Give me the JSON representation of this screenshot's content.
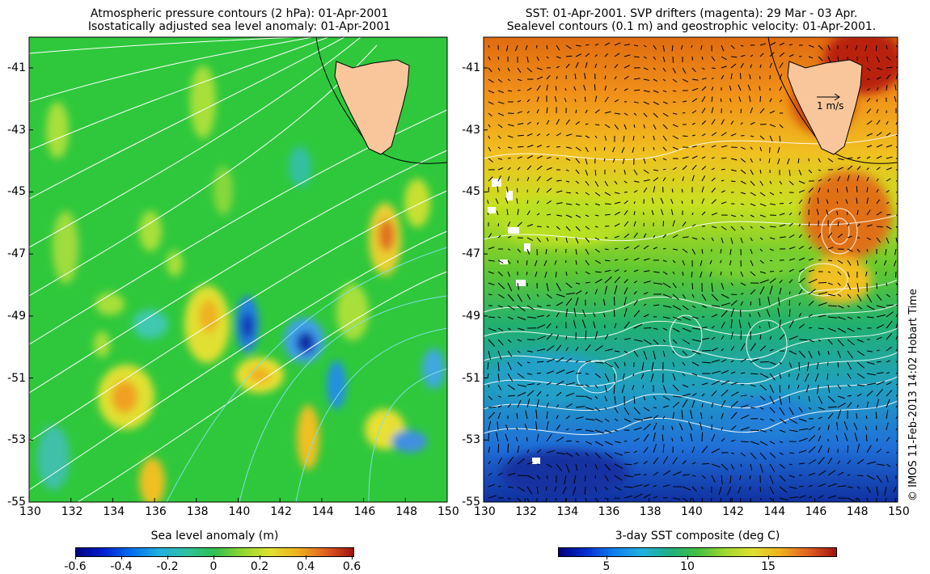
{
  "left_panel": {
    "title_line1": "Atmospheric pressure contours (2 hPa): 01-Apr-2001",
    "title_line2": "Isostatically adjusted sea level anomaly: 01-Apr-2001",
    "colorbar_title": "Sea level anomaly (m)",
    "colorbar_ticks": [
      "-0.6",
      "-0.4",
      "-0.2",
      "0",
      "0.2",
      "0.4",
      "0.6"
    ],
    "x_ticks": [
      "130",
      "132",
      "134",
      "136",
      "138",
      "140",
      "142",
      "144",
      "146",
      "148",
      "150"
    ],
    "y_ticks": [
      "-41",
      "-43",
      "-45",
      "-47",
      "-49",
      "-51",
      "-53",
      "-55"
    ]
  },
  "right_panel": {
    "title_line1": "SST: 01-Apr-2001. SVP drifters (magenta): 29 Mar - 03 Apr.",
    "title_line2": "Sealevel contours (0.1 m) and geostrophic velocity: 01-Apr-2001.",
    "colorbar_title": "3-day SST composite (deg C)",
    "colorbar_ticks": [
      "5",
      "10",
      "15"
    ],
    "velocity_scale_label": "1 m/s",
    "x_ticks": [
      "130",
      "132",
      "134",
      "136",
      "138",
      "140",
      "142",
      "144",
      "146",
      "148",
      "150"
    ],
    "y_ticks": [
      "-41",
      "-43",
      "-45",
      "-47",
      "-49",
      "-51",
      "-53",
      "-55"
    ]
  },
  "copyright": "© IMOS 11-Feb-2013 14:02 Hobart Time",
  "colors": {
    "land": "#f9c69b",
    "sla_background": "#2fc83c",
    "contour_white": "#ffffff",
    "contour_cyan": "#7fe0e0"
  },
  "map_extent": {
    "lon": [
      130,
      150
    ],
    "lat": [
      -55,
      -40
    ]
  }
}
